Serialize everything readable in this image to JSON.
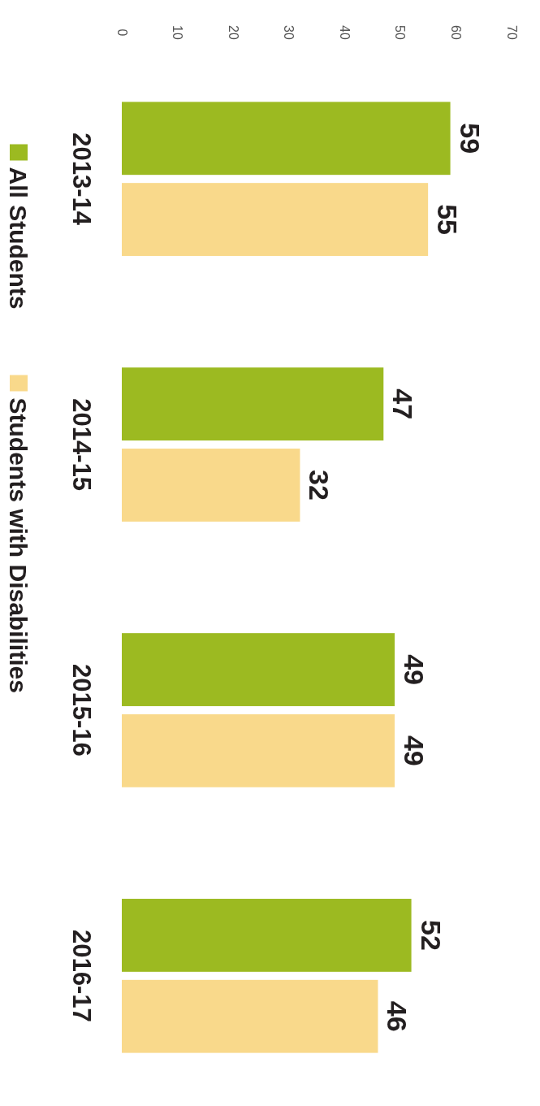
{
  "chart_data": {
    "type": "bar",
    "orientation": "horizontal",
    "categories": [
      "2013-14",
      "2014-15",
      "2015-16",
      "2016-17"
    ],
    "series": [
      {
        "name": "All Students",
        "color": "#9cba21",
        "values": [
          59,
          47,
          49,
          52
        ]
      },
      {
        "name": "Students with Disabilities",
        "color": "#f9d98b",
        "values": [
          55,
          32,
          49,
          46
        ]
      }
    ],
    "xlim": [
      0,
      70
    ],
    "xticks": [
      0,
      10,
      20,
      30,
      40,
      50,
      60,
      70
    ],
    "data_labels": true,
    "legend": "left",
    "grid": false
  }
}
